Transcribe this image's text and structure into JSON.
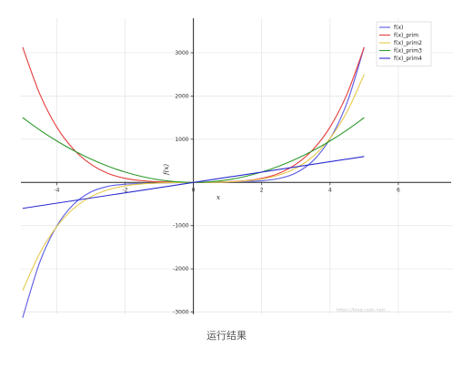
{
  "caption": "运行结果",
  "watermark": "https://blog.csdn.net/...",
  "chart_data": {
    "type": "line",
    "xlabel": "x",
    "ylabel": "f(x)",
    "xlim": [
      -5.05,
      7.6
    ],
    "ylim": [
      -3050,
      3800
    ],
    "xticks": [
      -4,
      -2,
      0,
      2,
      4,
      6
    ],
    "yticks": [
      -3000,
      -2000,
      -1000,
      1000,
      2000,
      3000
    ],
    "grid": true,
    "legend_position": "top-right",
    "series": [
      {
        "name": "f(x)",
        "color": "#5a5ae6",
        "x": [
          -5,
          -4.5,
          -4,
          -3.5,
          -3,
          -2.5,
          -2,
          -1.5,
          -1,
          -0.5,
          0,
          0.5,
          1,
          1.5,
          2,
          2.5,
          3,
          3.5,
          4,
          4.5,
          5
        ],
        "y": [
          -3130,
          -1850,
          -1010,
          -500,
          -220,
          -90,
          -40,
          -25,
          -15,
          -7,
          0,
          7,
          15,
          25,
          40,
          90,
          220,
          500,
          1010,
          1850,
          3130
        ]
      },
      {
        "name": "f(x)_prim",
        "color": "#e63c3c",
        "x": [
          -5,
          -4.5,
          -4,
          -3.5,
          -3,
          -2.5,
          -2,
          -1.5,
          -1,
          -0.5,
          0,
          0.5,
          1,
          1.5,
          2,
          2.5,
          3,
          3.5,
          4,
          4.5,
          5
        ],
        "y": [
          3130,
          2050,
          1280,
          760,
          420,
          210,
          95,
          40,
          15,
          4,
          0,
          4,
          15,
          40,
          95,
          210,
          420,
          760,
          1280,
          2050,
          3130
        ]
      },
      {
        "name": "f(x)_prim2",
        "color": "#e6c84a",
        "x": [
          -5,
          -4.5,
          -4,
          -3.5,
          -3,
          -2.5,
          -2,
          -1.5,
          -1,
          -0.5,
          0,
          0.5,
          1,
          1.5,
          2,
          2.5,
          3,
          3.5,
          4,
          4.5,
          5
        ],
        "y": [
          -2500,
          -1640,
          -1020,
          -600,
          -330,
          -170,
          -80,
          -35,
          -12,
          -3,
          0,
          3,
          12,
          35,
          80,
          170,
          330,
          600,
          1020,
          1640,
          2500
        ]
      },
      {
        "name": "f(x)_prim3",
        "color": "#2e9a2e",
        "x": [
          -5,
          -4.5,
          -4,
          -3.5,
          -3,
          -2.5,
          -2,
          -1.5,
          -1,
          -0.5,
          0,
          0.5,
          1,
          1.5,
          2,
          2.5,
          3,
          3.5,
          4,
          4.5,
          5
        ],
        "y": [
          1500,
          1215,
          960,
          735,
          540,
          375,
          240,
          135,
          60,
          15,
          0,
          15,
          60,
          135,
          240,
          375,
          540,
          735,
          960,
          1215,
          1500
        ]
      },
      {
        "name": "f(x)_prim4",
        "color": "#2a2ad0",
        "x": [
          -5,
          5
        ],
        "y": [
          -600,
          600
        ]
      }
    ]
  }
}
